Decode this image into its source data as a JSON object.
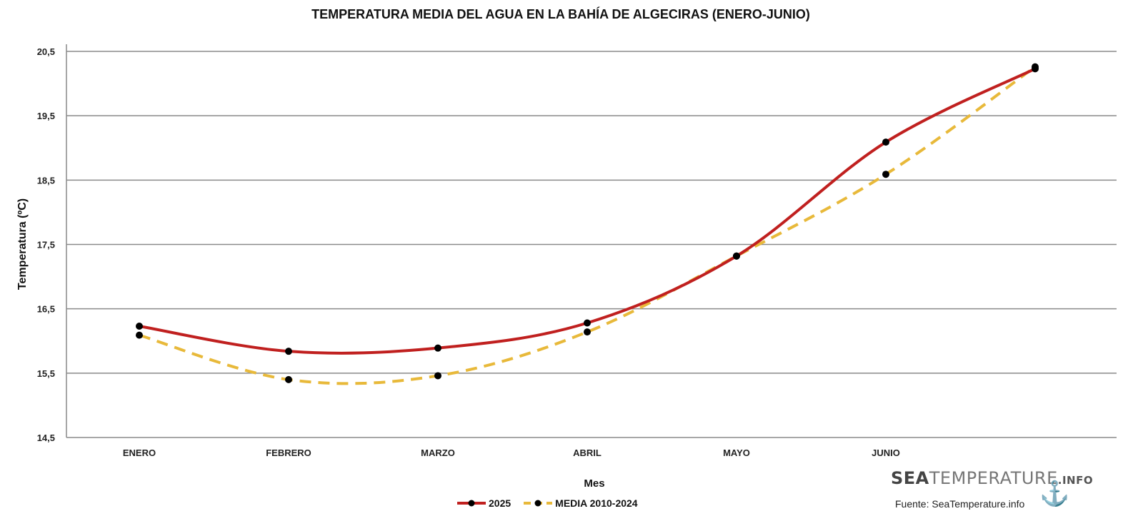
{
  "chart_data": {
    "type": "line",
    "title": "TEMPERATURA MEDIA DEL AGUA EN LA BAHÍA DE ALGECIRAS (ENERO-JUNIO)",
    "xlabel": "Mes",
    "ylabel": "Temperatura (ºC)",
    "categories": [
      "ENERO",
      "FEBRERO",
      "MARZO",
      "ABRIL",
      "MAYO",
      "JUNIO",
      ""
    ],
    "ylim": [
      14.5,
      20.5
    ],
    "yticks": [
      "14,5",
      "15,5",
      "16,5",
      "17,5",
      "18,5",
      "19,5",
      "20,5"
    ],
    "grid": true,
    "legend_position": "bottom",
    "series": [
      {
        "name": "2025",
        "color": "#c0201f",
        "dash": false,
        "values": [
          16.23,
          15.84,
          15.89,
          16.28,
          17.32,
          19.09,
          20.23
        ]
      },
      {
        "name": "MEDIA 2010-2024",
        "color": "#e8b93a",
        "dash": true,
        "values": [
          16.09,
          15.4,
          15.46,
          16.14,
          17.32,
          18.59,
          20.26
        ]
      }
    ]
  },
  "branding": {
    "logo_sea": "SEA",
    "logo_temperature": "TEMPERATURE",
    "logo_info": ".INFO",
    "source": "Fuente: SeaTemperature.info"
  }
}
